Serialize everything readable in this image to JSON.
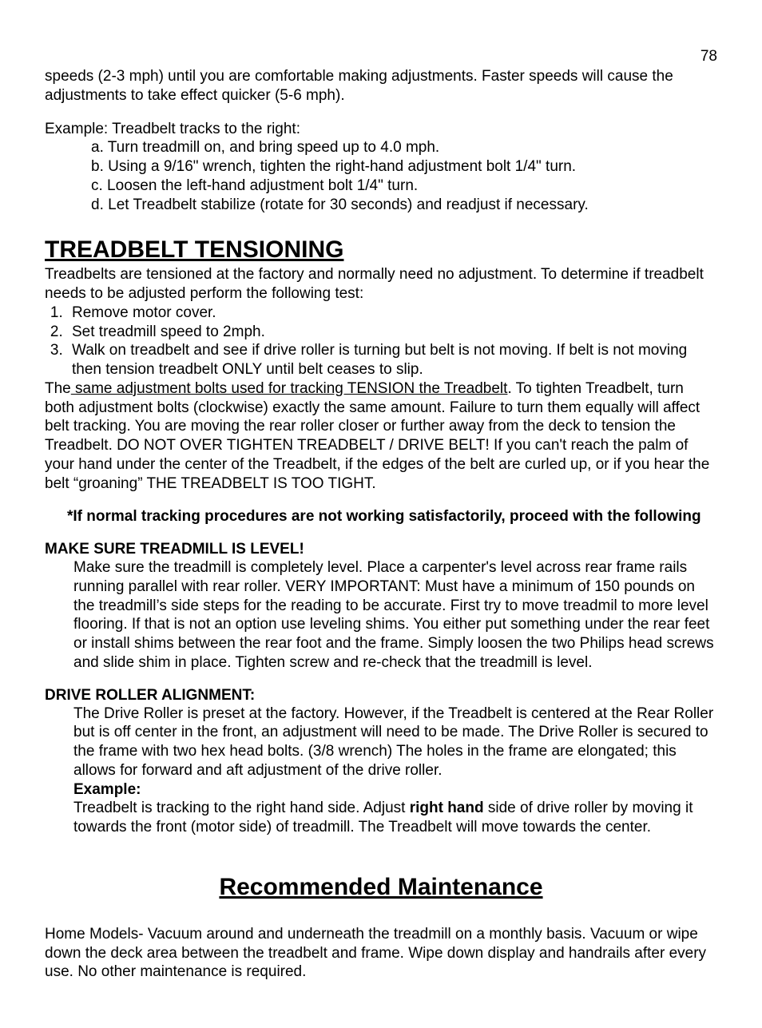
{
  "page_number": "78",
  "intro": {
    "p1": "speeds (2-3 mph) until you are comfortable making adjustments.  Faster speeds will cause the adjustments to take effect quicker (5-6 mph).",
    "example_lead": "Example: Treadbelt tracks to the right:",
    "steps": {
      "a": "a. Turn treadmill on, and bring speed up to 4.0 mph.",
      "b": "b. Using a 9/16\" wrench, tighten the right-hand adjustment bolt 1/4\" turn.",
      "c": "c. Loosen the left-hand adjustment bolt 1/4\" turn.",
      "d": "d. Let Treadbelt stabilize (rotate for 30 seconds) and readjust if necessary."
    }
  },
  "tensioning": {
    "heading": "TREADBELT TENSIONING",
    "intro": "Treadbelts are tensioned at the factory and normally need no adjustment. To determine if treadbelt needs to be adjusted perform the following test:",
    "steps": [
      "Remove motor cover.",
      "Set treadmill speed to 2mph.",
      "Walk on treadbelt and see if drive roller is turning but belt is not moving. If belt is not moving then tension treadbelt ONLY until belt ceases to slip."
    ],
    "body_pre": "The",
    "body_underline": " same adjustment bolts used for tracking TENSION the Treadbelt",
    "body_post": ". To tighten Treadbelt, turn both adjustment bolts (clockwise) exactly the same amount. Failure to turn them equally will affect belt tracking. You are moving the rear roller closer or further away from the deck to tension the Treadbelt. DO NOT OVER TIGHTEN TREADBELT / DRIVE BELT! If you can't reach the palm of your hand under the center of the Treadbelt, if the edges of the belt are curled up, or if you hear the belt “groaning” THE TREADBELT IS TOO TIGHT.",
    "note": "*If normal tracking procedures are not working satisfactorily, proceed with the following"
  },
  "level": {
    "heading": "MAKE SURE TREADMILL IS LEVEL!",
    "body": "Make sure the treadmill is completely level. Place a carpenter's level across rear frame rails running parallel with rear roller. VERY IMPORTANT: Must have a minimum of 150 pounds on the treadmill’s side steps for the reading to be accurate. First try to move treadmil to more level flooring. If that is not an option use leveling shims. You either put something under the rear feet or  install shims between the rear foot and the frame. Simply loosen the two Philips head screws and slide shim in place. Tighten screw and re-check that the treadmill is level."
  },
  "drive_roller": {
    "heading": "DRIVE ROLLER ALIGNMENT:",
    "body": "The Drive Roller is preset at the factory. However, if the Treadbelt is centered at the Rear Roller but is off center in the front, an adjustment will need to be made. The Drive Roller is secured to the frame with two hex head bolts. (3/8 wrench)  The holes in the frame are elongated; this allows for forward and aft adjustment of the drive roller.",
    "example_label": "Example:",
    "example_pre": "Treadbelt is tracking to the right hand side. Adjust ",
    "example_bold": "right hand",
    "example_post": " side of drive roller by moving it towards the front (motor side) of treadmill. The Treadbelt will move towards the center."
  },
  "maintenance": {
    "heading": "Recommended Maintenance",
    "lead_bold": "Home Models",
    "dash": "- ",
    "body": "Vacuum around and underneath the treadmill on a monthly basis. Vacuum or wipe down the deck area between the treadbelt and frame. Wipe down display and handrails after every use. No other maintenance is required."
  }
}
